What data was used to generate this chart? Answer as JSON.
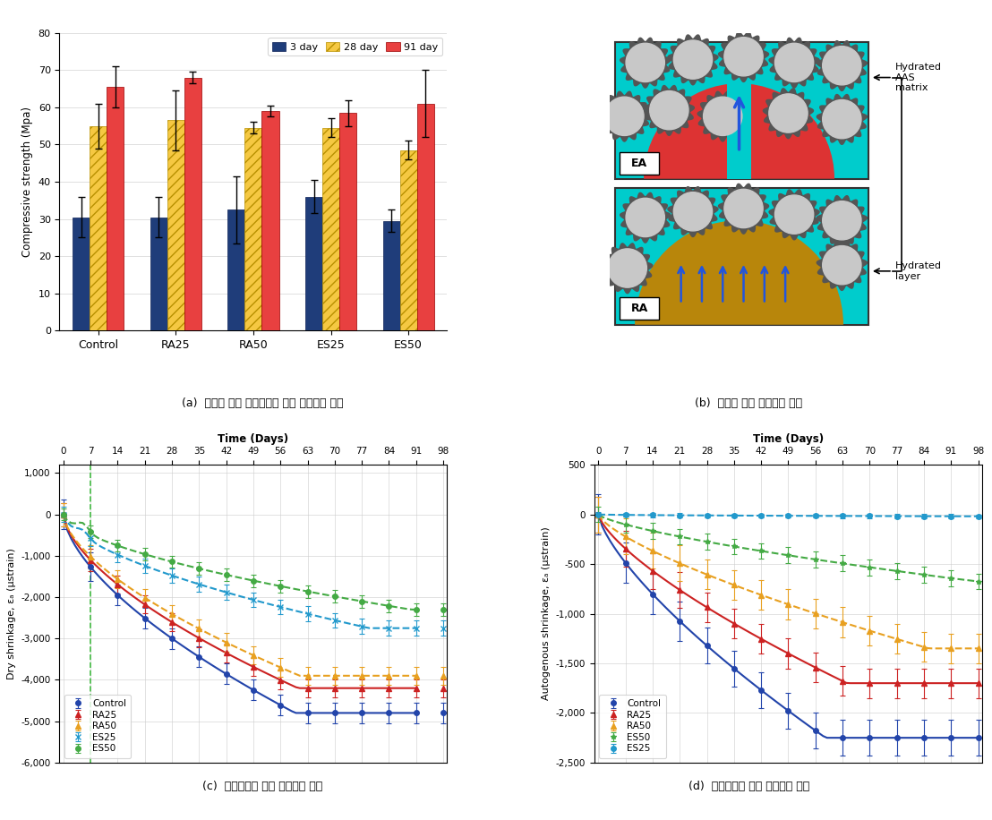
{
  "bar_categories": [
    "Control",
    "RA25",
    "RA50",
    "ES25",
    "ES50"
  ],
  "bar_3day": [
    30.5,
    30.5,
    32.5,
    36.0,
    29.5
  ],
  "bar_28day": [
    55.0,
    56.5,
    54.5,
    54.5,
    48.5
  ],
  "bar_91day": [
    65.5,
    68.0,
    59.0,
    58.5,
    61.0
  ],
  "bar_3day_err": [
    5.5,
    5.5,
    9.0,
    4.5,
    3.0
  ],
  "bar_28day_err": [
    6.0,
    8.0,
    1.5,
    2.5,
    2.5
  ],
  "bar_91day_err": [
    5.5,
    1.5,
    1.5,
    3.5,
    9.0
  ],
  "bar_color_3day": "#1f3d7a",
  "bar_color_28day": "#f5c842",
  "bar_color_91day": "#e84040",
  "ylabel_bar": "Compressive strength (Mpa)",
  "ylim_bar": [
    0,
    80
  ],
  "yticks_bar": [
    0,
    10,
    20,
    30,
    40,
    50,
    60,
    70,
    80
  ],
  "caption_a": "(a)  부산물 활용 내부양생에 의한 압축강도 변화",
  "caption_b": "(b)  부산물 골재 내부양생 개념",
  "caption_c": "(c)  내부양생에 의한 건조수축 감소",
  "caption_d": "(d)  내부양생에 의한 자기수축 감소",
  "color_control": "#2244aa",
  "color_RA25": "#cc2222",
  "color_RA50": "#e8a020",
  "color_ES25": "#2299cc",
  "color_ES50": "#44aa44"
}
